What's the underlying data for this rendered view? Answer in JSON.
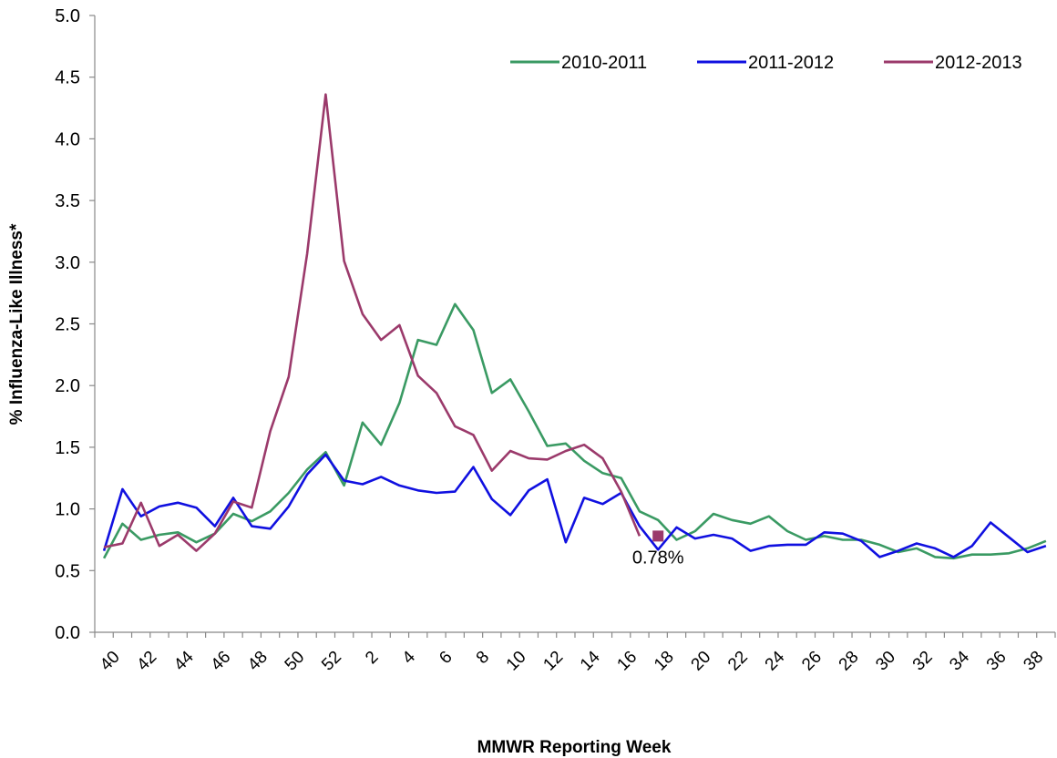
{
  "chart_data": {
    "type": "line",
    "xlabel": "MMWR Reporting Week",
    "ylabel": "% Influenza-Like Illness*",
    "ylim": [
      0,
      5
    ],
    "yticks": [
      "0.0",
      "0.5",
      "1.0",
      "1.5",
      "2.0",
      "2.5",
      "3.0",
      "3.5",
      "4.0",
      "4.5",
      "5.0"
    ],
    "xtick_labels": [
      "40",
      "42",
      "44",
      "46",
      "48",
      "50",
      "52",
      "2",
      "4",
      "6",
      "8",
      "10",
      "12",
      "14",
      "16",
      "18",
      "20",
      "22",
      "24",
      "26",
      "28",
      "30",
      "32",
      "34",
      "36",
      "38"
    ],
    "weeks": [
      "40",
      "41",
      "42",
      "43",
      "44",
      "45",
      "46",
      "47",
      "48",
      "49",
      "50",
      "51",
      "52",
      "1",
      "2",
      "3",
      "4",
      "5",
      "6",
      "7",
      "8",
      "9",
      "10",
      "11",
      "12",
      "13",
      "14",
      "15",
      "16",
      "17",
      "18",
      "19",
      "20",
      "21",
      "22",
      "23",
      "24",
      "25",
      "26",
      "27",
      "28",
      "29",
      "30",
      "31",
      "32",
      "33",
      "34",
      "35",
      "36",
      "37",
      "38",
      "39"
    ],
    "grid": false,
    "legend_position": "top-right",
    "series": [
      {
        "name": "2010-2011",
        "color": "#3a9a63",
        "values": [
          0.6,
          0.88,
          0.75,
          0.79,
          0.81,
          0.73,
          0.8,
          0.96,
          0.9,
          0.98,
          1.13,
          1.32,
          1.46,
          1.19,
          1.7,
          1.52,
          1.86,
          2.37,
          2.33,
          2.66,
          2.45,
          1.94,
          2.05,
          1.79,
          1.51,
          1.53,
          1.39,
          1.29,
          1.25,
          0.98,
          0.91,
          0.75,
          0.82,
          0.96,
          0.91,
          0.88,
          0.94,
          0.82,
          0.75,
          0.78,
          0.75,
          0.75,
          0.71,
          0.65,
          0.68,
          0.61,
          0.6,
          0.63,
          0.63,
          0.64,
          0.68,
          0.74
        ]
      },
      {
        "name": "2011-2012",
        "color": "#1010e0",
        "values": [
          0.66,
          1.16,
          0.94,
          1.02,
          1.05,
          1.01,
          0.86,
          1.09,
          0.86,
          0.84,
          1.02,
          1.28,
          1.44,
          1.23,
          1.2,
          1.26,
          1.19,
          1.15,
          1.13,
          1.14,
          1.34,
          1.08,
          0.95,
          1.15,
          1.24,
          0.73,
          1.09,
          1.04,
          1.13,
          0.86,
          0.67,
          0.85,
          0.76,
          0.79,
          0.76,
          0.66,
          0.7,
          0.71,
          0.71,
          0.81,
          0.8,
          0.74,
          0.61,
          0.66,
          0.72,
          0.68,
          0.61,
          0.7,
          0.89,
          0.77,
          0.65,
          0.7
        ]
      },
      {
        "name": "2012-2013",
        "color": "#9b3a6b",
        "values": [
          0.69,
          0.72,
          1.05,
          0.7,
          0.79,
          0.66,
          0.8,
          1.06,
          1.01,
          1.63,
          2.07,
          3.07,
          4.36,
          3.01,
          2.58,
          2.37,
          2.49,
          2.08,
          1.94,
          1.67,
          1.6,
          1.31,
          1.47,
          1.41,
          1.4,
          1.47,
          1.52,
          1.41,
          1.14,
          0.78
        ]
      }
    ],
    "annotations": [
      {
        "text": "0.78%",
        "week": "18",
        "value": 0.78
      }
    ]
  }
}
